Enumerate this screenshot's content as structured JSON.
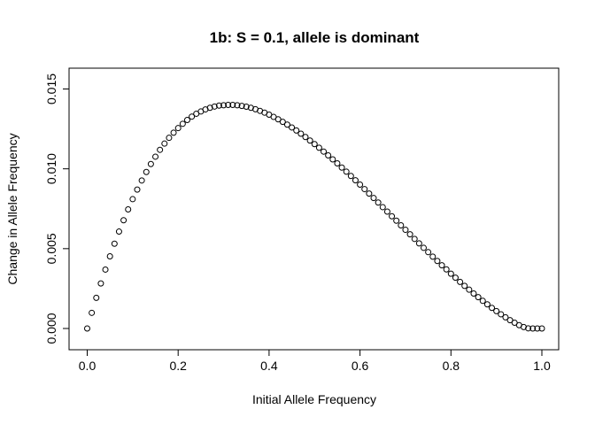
{
  "chart_data": {
    "type": "scatter",
    "title": "1b: S = 0.1, allele is dominant",
    "xlabel": "Initial Allele Frequency",
    "ylabel": "Change in Allele Frequency",
    "xlim": [
      0,
      1
    ],
    "ylim": [
      0,
      0.0155
    ],
    "xticks": [
      0,
      0.2,
      0.4,
      0.6,
      0.8,
      1.0
    ],
    "xtick_labels": [
      "0.0",
      "0.2",
      "0.4",
      "0.6",
      "0.8",
      "1.0"
    ],
    "yticks": [
      0,
      0.005,
      0.01,
      0.015
    ],
    "ytick_labels": [
      "0.000",
      "0.005",
      "0.010",
      "0.015"
    ],
    "grid": false,
    "marker": "open-circle",
    "point_color": "#000000",
    "series": [
      {
        "x": [
          0,
          0.01,
          0.02,
          0.03,
          0.04,
          0.05,
          0.06,
          0.07,
          0.08,
          0.09,
          0.1,
          0.11,
          0.12,
          0.13,
          0.14,
          0.15,
          0.16,
          0.17,
          0.18,
          0.19,
          0.2,
          0.21,
          0.22,
          0.23,
          0.24,
          0.25,
          0.26,
          0.27,
          0.28,
          0.29,
          0.3,
          0.31,
          0.32,
          0.33,
          0.34,
          0.35,
          0.36,
          0.37,
          0.38,
          0.39,
          0.4,
          0.41,
          0.42,
          0.43,
          0.44,
          0.45,
          0.46,
          0.47,
          0.48,
          0.49,
          0.5,
          0.51,
          0.52,
          0.53,
          0.54,
          0.55,
          0.56,
          0.57,
          0.58,
          0.59,
          0.6,
          0.61,
          0.62,
          0.63,
          0.64,
          0.65,
          0.66,
          0.67,
          0.68,
          0.69,
          0.7,
          0.71,
          0.72,
          0.73,
          0.74,
          0.75,
          0.76,
          0.77,
          0.78,
          0.79,
          0.8,
          0.81,
          0.82,
          0.83,
          0.84,
          0.85,
          0.86,
          0.87,
          0.88,
          0.89,
          0.9,
          0.91,
          0.92,
          0.93,
          0.94,
          0.95,
          0.96,
          0.97,
          0.98,
          0.99,
          1.0
        ],
        "y": [
          0,
          0.00098,
          0.00192,
          0.00282,
          0.00369,
          0.00452,
          0.00531,
          0.00607,
          0.00678,
          0.00746,
          0.0081,
          0.0087,
          0.00927,
          0.0098,
          0.0103,
          0.01076,
          0.01119,
          0.01158,
          0.01194,
          0.01226,
          0.01255,
          0.01282,
          0.01306,
          0.01327,
          0.01345,
          0.01359,
          0.01372,
          0.01382,
          0.0139,
          0.01396,
          0.01398,
          0.014,
          0.014,
          0.01398,
          0.01394,
          0.01389,
          0.01382,
          0.01373,
          0.01363,
          0.01352,
          0.01339,
          0.01325,
          0.0131,
          0.01294,
          0.01277,
          0.01259,
          0.0124,
          0.0122,
          0.01199,
          0.01177,
          0.01155,
          0.01132,
          0.01108,
          0.01084,
          0.01059,
          0.01034,
          0.01008,
          0.00982,
          0.00955,
          0.00928,
          0.00901,
          0.00873,
          0.00845,
          0.00817,
          0.00789,
          0.0076,
          0.00732,
          0.00703,
          0.00675,
          0.00646,
          0.00618,
          0.0059,
          0.00561,
          0.00533,
          0.00505,
          0.00478,
          0.0045,
          0.00423,
          0.00396,
          0.0037,
          0.00343,
          0.00318,
          0.00292,
          0.00267,
          0.00243,
          0.00219,
          0.00196,
          0.00173,
          0.00151,
          0.00129,
          0.00109,
          0.00089,
          0.0007,
          0.00052,
          0.00036,
          0.00021,
          9e-05,
          1e-05,
          0.0,
          0.0,
          0.0
        ]
      }
    ]
  }
}
